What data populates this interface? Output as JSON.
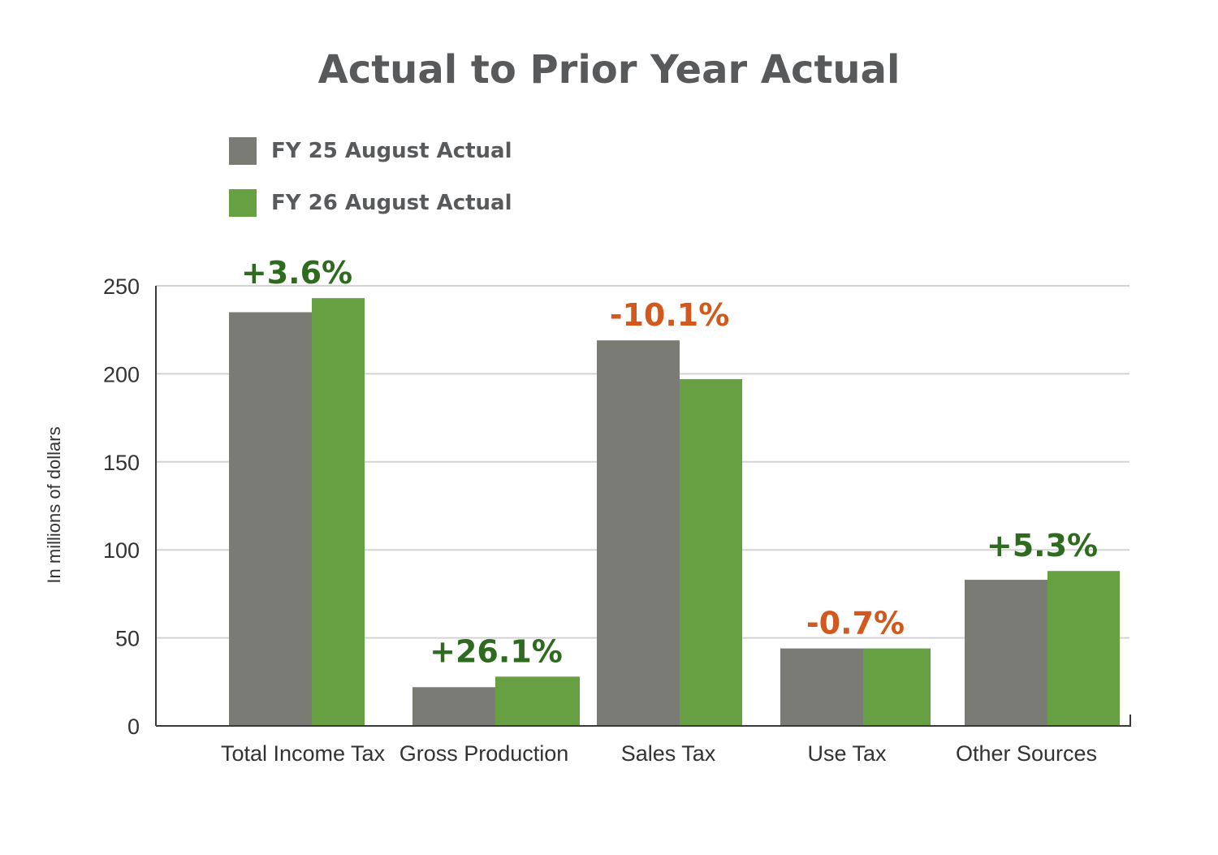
{
  "chart_data": {
    "type": "bar",
    "title": "Actual to Prior Year Actual",
    "ylabel": "In millions of dollars",
    "xlabel": "",
    "ylim": [
      0,
      250
    ],
    "yticks": [
      0,
      50,
      100,
      150,
      200,
      250
    ],
    "grid": true,
    "legend_position": "top-left",
    "categories": [
      "Total Income Tax",
      "Gross Production",
      "Sales Tax",
      "Use Tax",
      "Other Sources"
    ],
    "series": [
      {
        "name": "FY 25 August Actual",
        "color": "#7b7b75",
        "values": [
          235,
          22,
          219,
          44,
          83
        ]
      },
      {
        "name": "FY 26 August Actual",
        "color": "#66a043",
        "values": [
          243,
          28,
          197,
          44,
          88
        ]
      }
    ],
    "annotations": [
      {
        "category": "Total Income Tax",
        "text": "+3.6%",
        "color": "#2e6b1f"
      },
      {
        "category": "Gross Production",
        "text": "+26.1%",
        "color": "#2e6b1f"
      },
      {
        "category": "Sales Tax",
        "text": "-10.1%",
        "color": "#d3581e"
      },
      {
        "category": "Use Tax",
        "text": "-0.7%",
        "color": "#d3581e"
      },
      {
        "category": "Other Sources",
        "text": "+5.3%",
        "color": "#2e6b1f"
      }
    ]
  }
}
